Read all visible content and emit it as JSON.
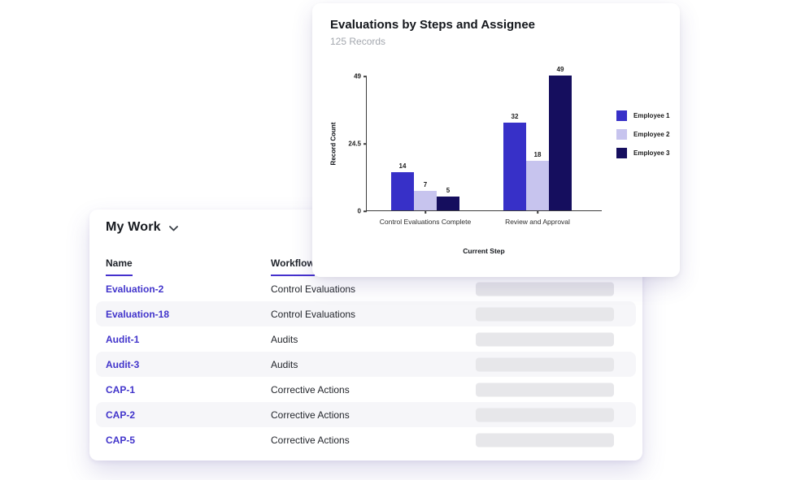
{
  "accent_color": "#4531cd",
  "chart_card": {
    "title": "Evaluations by Steps and Assignee",
    "subtitle": "125 Records"
  },
  "chart_data": {
    "type": "bar",
    "title": "Evaluations by Steps and Assignee",
    "subtitle": "125 Records",
    "categories": [
      "Control Evaluations Complete",
      "Review and Approval"
    ],
    "series": [
      {
        "name": "Employee 1",
        "color": "#3730c8",
        "values": [
          14,
          32
        ]
      },
      {
        "name": "Employee 2",
        "color": "#c7c4ee",
        "values": [
          7,
          18
        ]
      },
      {
        "name": "Employee 3",
        "color": "#150e5e",
        "values": [
          5,
          49
        ]
      }
    ],
    "xlabel": "Current Step",
    "ylabel": "Record Count",
    "yticks": [
      0,
      24.5,
      49
    ],
    "ylim": [
      0,
      49
    ],
    "grid": false,
    "legend_position": "right"
  },
  "my_work": {
    "title": "My Work",
    "columns": [
      {
        "label": "Name"
      },
      {
        "label": "Workflow"
      }
    ],
    "rows": [
      {
        "name": "Evaluation-2",
        "workflow": "Control Evaluations",
        "skeleton": true
      },
      {
        "name": "Evaluation-18",
        "workflow": "Control Evaluations",
        "skeleton": true
      },
      {
        "name": "Audit-1",
        "workflow": "Audits",
        "skeleton": true
      },
      {
        "name": "Audit-3",
        "workflow": "Audits",
        "skeleton": true
      },
      {
        "name": "CAP-1",
        "workflow": "Corrective Actions",
        "skeleton": true
      },
      {
        "name": "CAP-2",
        "workflow": "Corrective Actions",
        "skeleton": true
      },
      {
        "name": "CAP-5",
        "workflow": "Corrective Actions",
        "skeleton": true
      }
    ]
  }
}
